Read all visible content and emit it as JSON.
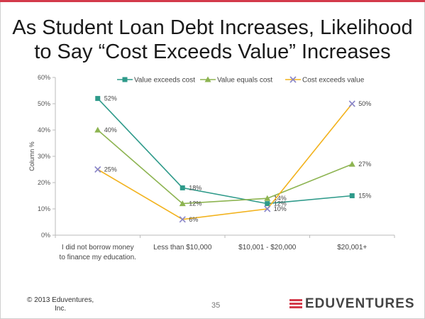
{
  "slide": {
    "title_line1": "As Student Loan Debt Increases, Likelihood",
    "title_line2": "to Say “Cost Exceeds Value” Increases",
    "footer_line1": "© 2013 Eduventures,",
    "footer_line2": "Inc.",
    "page_number": "35",
    "logo_text": "EDUVENTURES",
    "accent_color": "#d33a4b"
  },
  "chart_data": {
    "type": "line",
    "categories": [
      [
        "I did not borrow money",
        "to finance my education."
      ],
      [
        "Less than $10,000"
      ],
      [
        "$10,001 - $20,000"
      ],
      [
        "$20,001+"
      ]
    ],
    "ylabel": "Column %",
    "ylim": [
      0,
      60
    ],
    "yticks": [
      0,
      10,
      20,
      30,
      40,
      50,
      60
    ],
    "ytick_labels": [
      "0%",
      "10%",
      "20%",
      "30%",
      "40%",
      "50%",
      "60%"
    ],
    "legend_position": "top",
    "series": [
      {
        "name": "Value exceeds cost",
        "color": "#2e9a8a",
        "marker": "square",
        "values": [
          52,
          18,
          12,
          15
        ],
        "labels": [
          "52%",
          "18%",
          "12%",
          "15%"
        ]
      },
      {
        "name": "Value equals cost",
        "color": "#8db451",
        "marker": "triangle",
        "values": [
          40,
          12,
          14,
          27
        ],
        "labels": [
          "40%",
          "12%",
          "14%",
          "27%"
        ]
      },
      {
        "name": "Cost exceeds value",
        "color": "#f2b21c",
        "marker": "x",
        "values": [
          25,
          6,
          10,
          50
        ],
        "labels": [
          "25%",
          "6%",
          "10%",
          "50%"
        ]
      }
    ]
  }
}
